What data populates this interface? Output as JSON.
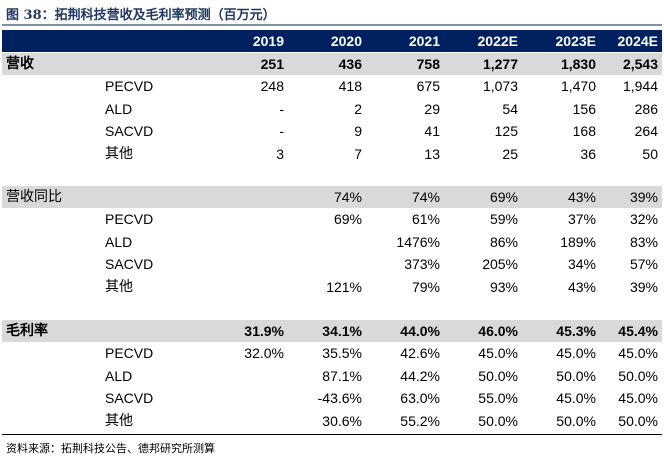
{
  "title": "图 38：拓荆科技营收及毛利率预测（百万元）",
  "columns": [
    "2019",
    "2020",
    "2021",
    "2022E",
    "2023E",
    "2024E"
  ],
  "sections": [
    {
      "label": "营收",
      "total": [
        "251",
        "436",
        "758",
        "1,277",
        "1,830",
        "2,543"
      ],
      "rows": [
        {
          "label": "PECVD",
          "values": [
            "248",
            "418",
            "675",
            "1,073",
            "1,470",
            "1,944"
          ]
        },
        {
          "label": "ALD",
          "values": [
            "-",
            "2",
            "29",
            "54",
            "156",
            "286"
          ]
        },
        {
          "label": "SACVD",
          "values": [
            "-",
            "9",
            "41",
            "125",
            "168",
            "264"
          ]
        },
        {
          "label": "其他",
          "values": [
            "3",
            "7",
            "13",
            "25",
            "36",
            "50"
          ]
        }
      ]
    },
    {
      "label": "营收同比",
      "total": [
        "",
        "74%",
        "74%",
        "69%",
        "43%",
        "39%"
      ],
      "rows": [
        {
          "label": "PECVD",
          "values": [
            "",
            "69%",
            "61%",
            "59%",
            "37%",
            "32%"
          ]
        },
        {
          "label": "ALD",
          "values": [
            "",
            "",
            "1476%",
            "86%",
            "189%",
            "83%"
          ]
        },
        {
          "label": "SACVD",
          "values": [
            "",
            "",
            "373%",
            "205%",
            "34%",
            "57%"
          ]
        },
        {
          "label": "其他",
          "values": [
            "",
            "121%",
            "79%",
            "93%",
            "43%",
            "39%"
          ]
        }
      ]
    },
    {
      "label": "毛利率",
      "total": [
        "31.9%",
        "34.1%",
        "44.0%",
        "46.0%",
        "45.3%",
        "45.4%"
      ],
      "rows": [
        {
          "label": "PECVD",
          "values": [
            "32.0%",
            "35.5%",
            "42.6%",
            "45.0%",
            "45.0%",
            "45.0%"
          ]
        },
        {
          "label": "ALD",
          "values": [
            "",
            "87.1%",
            "44.2%",
            "50.0%",
            "50.0%",
            "50.0%"
          ]
        },
        {
          "label": "SACVD",
          "values": [
            "",
            "-43.6%",
            "63.0%",
            "55.0%",
            "45.0%",
            "45.0%"
          ]
        },
        {
          "label": "其他",
          "values": [
            "",
            "30.6%",
            "55.2%",
            "50.0%",
            "50.0%",
            "50.0%"
          ]
        }
      ]
    }
  ],
  "source": "资料来源：拓荆科技公告、德邦研究所测算",
  "colors": {
    "header_bg": "#002060",
    "group_bg": "#d9d9d9",
    "title": "#1f3864"
  }
}
